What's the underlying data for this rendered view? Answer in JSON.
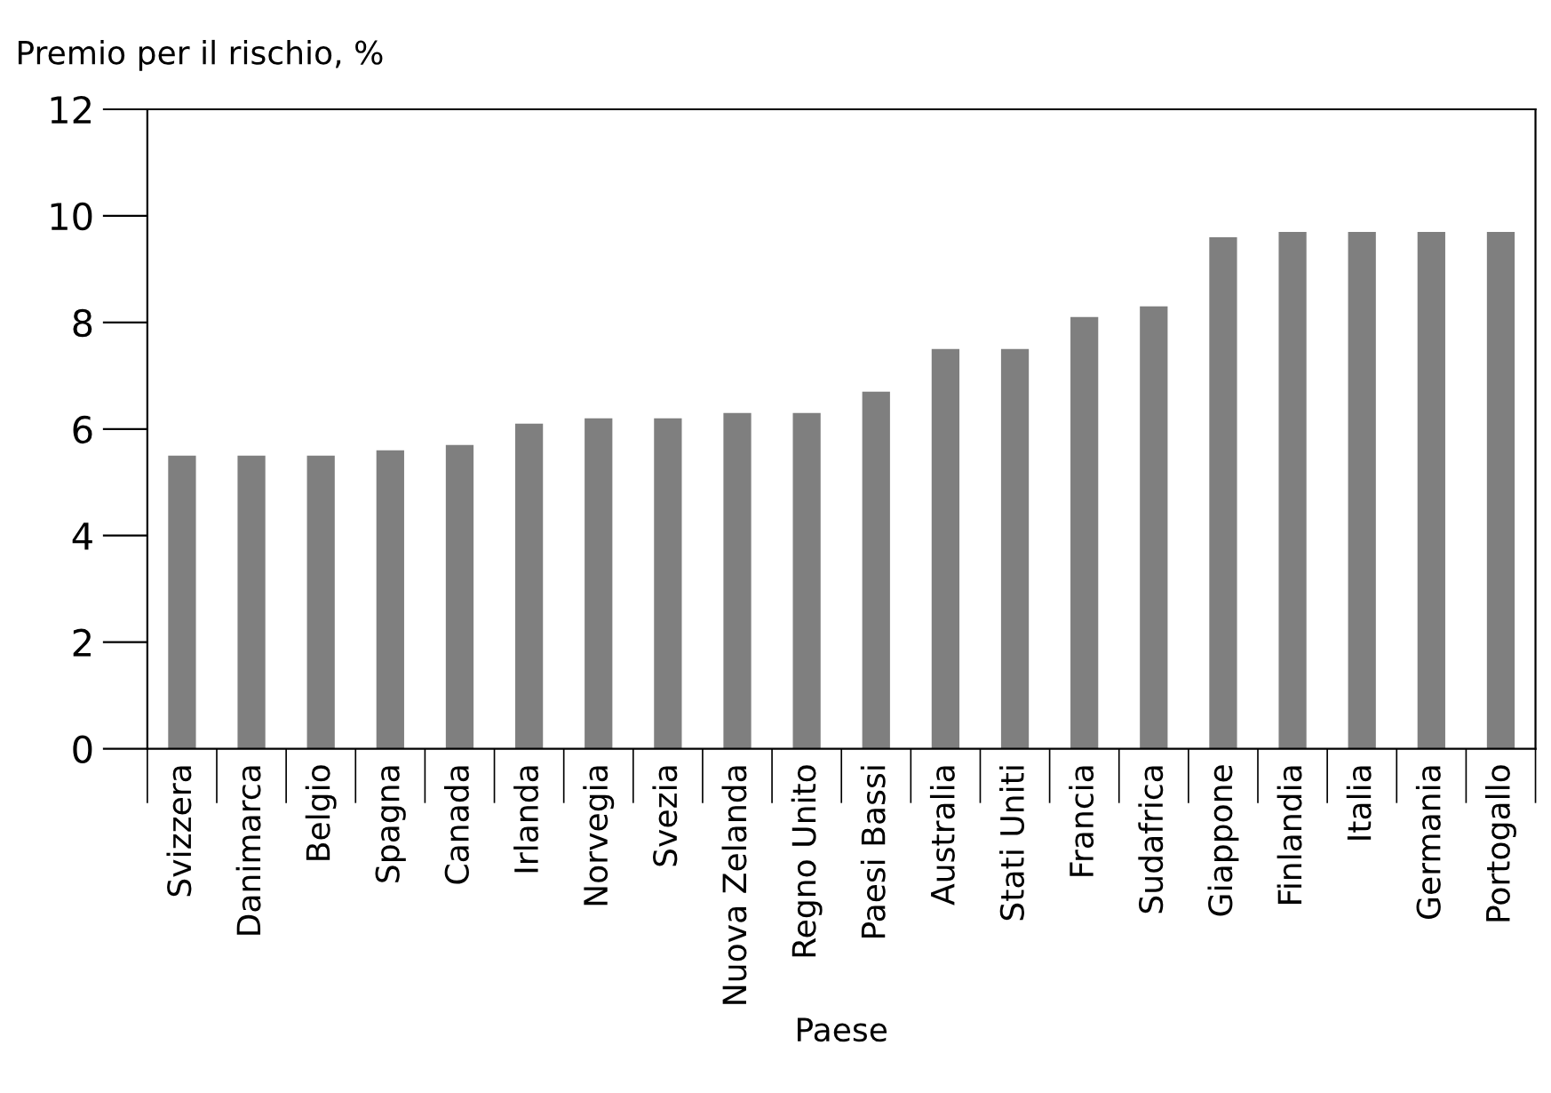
{
  "chart_data": {
    "type": "bar",
    "xlabel": "Paese",
    "ylabel": "Premio per il rischio, %",
    "categories": [
      "Svizzera",
      "Danimarca",
      "Belgio",
      "Spagna",
      "Canada",
      "Irlanda",
      "Norvegia",
      "Svezia",
      "Nuova Zelanda",
      "Regno Unito",
      "Paesi Bassi",
      "Australia",
      "Stati Uniti",
      "Francia",
      "Sudafrica",
      "Giappone",
      "Finlandia",
      "Italia",
      "Germania",
      "Portogallo"
    ],
    "values": [
      5.5,
      5.5,
      5.5,
      5.6,
      5.7,
      6.1,
      6.2,
      6.2,
      6.3,
      6.3,
      6.7,
      7.5,
      7.5,
      8.1,
      8.3,
      9.6,
      9.7,
      9.7,
      9.7,
      9.7
    ],
    "color": "#7f7f7f",
    "ylim": [
      0,
      12
    ],
    "yticks": [
      0,
      2,
      4,
      6,
      8,
      10,
      12
    ],
    "grid": false,
    "legend": false
  }
}
